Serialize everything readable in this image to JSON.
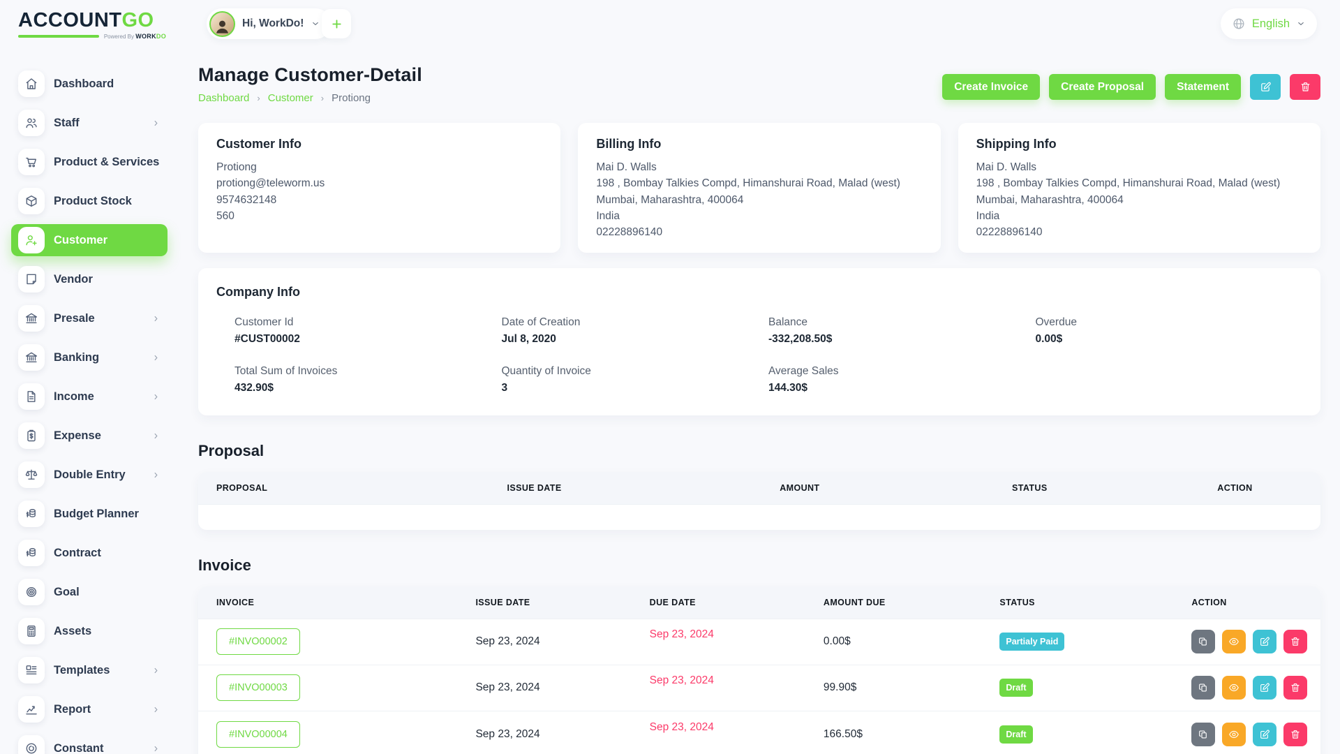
{
  "brand": {
    "name_primary": "ACCOUNT",
    "name_accent": "GO",
    "tagline_prefix": "Powered By",
    "tagline_word": "WORK",
    "tagline_word_accent": "DO"
  },
  "header": {
    "greeting": "Hi, WorkDo!",
    "language": "English"
  },
  "colors": {
    "green": "#6fd943",
    "navy": "#152536",
    "cyan": "#3ec2d4",
    "orange": "#f9a827",
    "pink": "#fb3a69",
    "gray_button": "#6e7680",
    "table_head_bg": "#f4f6fa",
    "page_bg": "#f8f9fc"
  },
  "sidebar": {
    "items": [
      {
        "label": "Dashboard",
        "icon": "home-icon",
        "active": false,
        "has_children": false
      },
      {
        "label": "Staff",
        "icon": "users-icon",
        "active": false,
        "has_children": true
      },
      {
        "label": "Product & Services",
        "icon": "cart-icon",
        "active": false,
        "has_children": false
      },
      {
        "label": "Product Stock",
        "icon": "box-icon",
        "active": false,
        "has_children": false
      },
      {
        "label": "Customer",
        "icon": "user-plus-icon",
        "active": true,
        "has_children": false
      },
      {
        "label": "Vendor",
        "icon": "note-icon",
        "active": false,
        "has_children": false
      },
      {
        "label": "Presale",
        "icon": "bank-icon",
        "active": false,
        "has_children": true
      },
      {
        "label": "Banking",
        "icon": "bank-icon",
        "active": false,
        "has_children": true
      },
      {
        "label": "Income",
        "icon": "file-icon",
        "active": false,
        "has_children": true
      },
      {
        "label": "Expense",
        "icon": "clipboard-dollar-icon",
        "active": false,
        "has_children": true
      },
      {
        "label": "Double Entry",
        "icon": "scale-icon",
        "active": false,
        "has_children": true
      },
      {
        "label": "Budget Planner",
        "icon": "coins-icon",
        "active": false,
        "has_children": false
      },
      {
        "label": "Contract",
        "icon": "coins-icon",
        "active": false,
        "has_children": false
      },
      {
        "label": "Goal",
        "icon": "target-icon",
        "active": false,
        "has_children": false
      },
      {
        "label": "Assets",
        "icon": "calculator-icon",
        "active": false,
        "has_children": false
      },
      {
        "label": "Templates",
        "icon": "layout-icon",
        "active": false,
        "has_children": true
      },
      {
        "label": "Report",
        "icon": "chart-icon",
        "active": false,
        "has_children": true
      },
      {
        "label": "Constant",
        "icon": "around-icon",
        "active": false,
        "has_children": true
      }
    ]
  },
  "page": {
    "title": "Manage Customer-Detail",
    "breadcrumb": [
      {
        "label": "Dashboard",
        "link": true
      },
      {
        "label": "Customer",
        "link": true
      },
      {
        "label": "Protiong",
        "link": false
      }
    ],
    "actions": {
      "create_invoice": "Create Invoice",
      "create_proposal": "Create Proposal",
      "statement": "Statement"
    }
  },
  "info_cards": [
    {
      "title": "Customer Info",
      "lines": [
        "Protiong",
        "protiong@teleworm.us",
        "9574632148",
        "560"
      ]
    },
    {
      "title": "Billing Info",
      "lines": [
        "Mai D. Walls",
        "198 , Bombay Talkies Compd, Himanshurai Road, Malad (west)",
        "Mumbai, Maharashtra, 400064",
        "India",
        "02228896140"
      ]
    },
    {
      "title": "Shipping Info",
      "lines": [
        "Mai D. Walls",
        "198 , Bombay Talkies Compd, Himanshurai Road, Malad (west)",
        "Mumbai, Maharashtra, 400064",
        "India",
        "02228896140"
      ]
    }
  ],
  "company_info": {
    "title": "Company Info",
    "stats": [
      {
        "label": "Customer Id",
        "value": "#CUST00002"
      },
      {
        "label": "Date of Creation",
        "value": "Jul 8, 2020"
      },
      {
        "label": "Balance",
        "value": "-332,208.50$"
      },
      {
        "label": "Overdue",
        "value": "0.00$"
      },
      {
        "label": "Total Sum of Invoices",
        "value": "432.90$"
      },
      {
        "label": "Quantity of Invoice",
        "value": "3"
      },
      {
        "label": "Average Sales",
        "value": "144.30$"
      }
    ]
  },
  "proposal": {
    "heading": "Proposal",
    "columns": [
      "PROPOSAL",
      "ISSUE DATE",
      "AMOUNT",
      "STATUS",
      "ACTION"
    ],
    "rows": []
  },
  "invoice": {
    "heading": "Invoice",
    "columns": [
      "INVOICE",
      "ISSUE DATE",
      "DUE DATE",
      "AMOUNT DUE",
      "STATUS",
      "ACTION"
    ],
    "rows": [
      {
        "number": "#INVO00002",
        "issue_date": "Sep 23, 2024",
        "due_date": "Sep 23, 2024",
        "amount_due": "0.00$",
        "status": "Partialy Paid",
        "status_color": "#3ec2d4"
      },
      {
        "number": "#INVO00003",
        "issue_date": "Sep 23, 2024",
        "due_date": "Sep 23, 2024",
        "amount_due": "99.90$",
        "status": "Draft",
        "status_color": "#6fd943"
      },
      {
        "number": "#INVO00004",
        "issue_date": "Sep 23, 2024",
        "due_date": "Sep 23, 2024",
        "amount_due": "166.50$",
        "status": "Draft",
        "status_color": "#6fd943"
      }
    ]
  }
}
